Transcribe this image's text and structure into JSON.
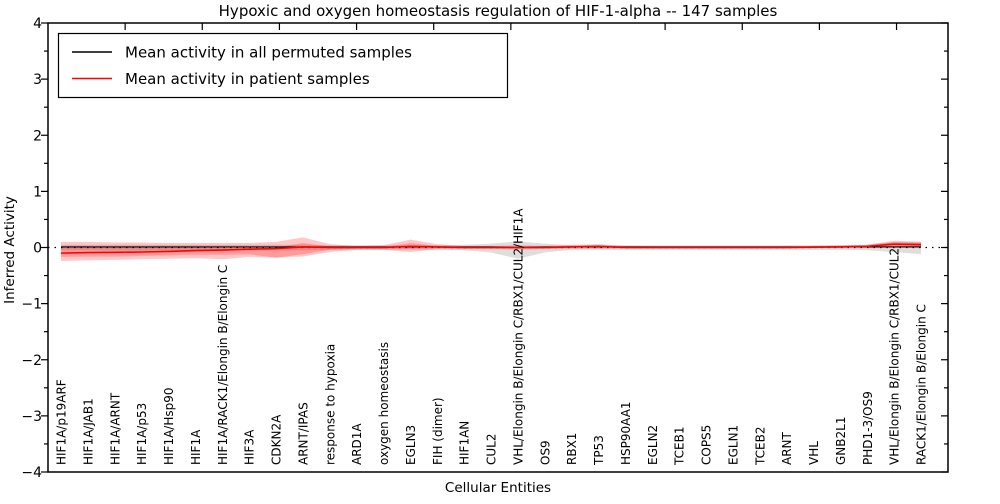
{
  "title": "Hypoxic and oxygen homeostasis regulation of HIF-1-alpha -- 147 samples",
  "axes": {
    "xlabel": "Cellular Entities",
    "ylabel": "Inferred Activity",
    "yticks": [
      4,
      3,
      2,
      1,
      0,
      -1,
      -2,
      -3,
      -4
    ],
    "ylim": [
      -4,
      4
    ]
  },
  "legend": {
    "items": [
      {
        "label": "Mean activity in all permuted samples",
        "color": "#000000"
      },
      {
        "label": "Mean activity in patient samples",
        "color": "#ff0000"
      }
    ]
  },
  "colors": {
    "frame": "#000000",
    "permuted_line": "#000000",
    "patient_line": "#ff0000",
    "permuted_band": "rgba(0,0,0,0.13)",
    "patient_band": "rgba(255,0,0,0.22)",
    "zero_line": "#000000"
  },
  "chart_data": {
    "type": "line",
    "title": "Hypoxic and oxygen homeostasis regulation of HIF-1-alpha -- 147 samples",
    "xlabel": "Cellular Entities",
    "ylabel": "Inferred Activity",
    "ylim": [
      -4,
      4
    ],
    "grid": false,
    "legend_position": "upper left",
    "categories": [
      "HIF1A/p19ARF",
      "HIF1A/JAB1",
      "HIF1A/ARNT",
      "HIF1A/p53",
      "HIF1A/Hsp90",
      "HIF1A",
      "HIF1A/RACK1/Elongin B/Elongin C",
      "HIF3A",
      "CDKN2A",
      "ARNT/IPAS",
      "response to hypoxia",
      "ARD1A",
      "oxygen homeostasis",
      "EGLN3",
      "FIH (dimer)",
      "HIF1AN",
      "CUL2",
      "VHL/Elongin B/Elongin C/RBX1/CUL2/HIF1A",
      "OS9",
      "RBX1",
      "TP53",
      "HSP90AA1",
      "EGLN2",
      "TCEB1",
      "COPS5",
      "EGLN1",
      "TCEB2",
      "ARNT",
      "VHL",
      "GNB2L1",
      "PHD1-3/OS9",
      "VHL/Elongin B/Elongin C/RBX1/CUL2",
      "RACK1/Elongin B/Elongin C"
    ],
    "series": [
      {
        "name": "Mean activity in all permuted samples",
        "color": "#000000",
        "values": [
          0.01,
          0.01,
          0.01,
          0.01,
          0.01,
          0.01,
          0.01,
          0.01,
          0.01,
          0.01,
          0.01,
          0.01,
          0.01,
          0.01,
          0.01,
          0.01,
          0.01,
          0.0,
          0.01,
          0.01,
          0.01,
          0.01,
          0.01,
          0.01,
          0.01,
          0.01,
          0.01,
          0.01,
          0.01,
          0.01,
          0.01,
          0.01,
          0.01
        ]
      },
      {
        "name": "Mean activity in patient samples",
        "color": "#ff0000",
        "values": [
          -0.1,
          -0.09,
          -0.085,
          -0.08,
          -0.07,
          -0.055,
          -0.045,
          -0.03,
          -0.02,
          0.01,
          0.0,
          0.0,
          0.0,
          0.02,
          0.01,
          0.0,
          0.0,
          0.0,
          0.0,
          0.01,
          0.02,
          0.0,
          0.0,
          0.0,
          0.0,
          0.0,
          0.0,
          0.0,
          0.005,
          0.01,
          0.02,
          0.06,
          0.05
        ]
      }
    ],
    "bands": [
      {
        "name": "permuted-std-band",
        "color": "rgba(0,0,0,0.13)",
        "upper": [
          0.05,
          0.05,
          0.05,
          0.05,
          0.05,
          0.05,
          0.05,
          0.05,
          0.05,
          0.05,
          0.04,
          0.04,
          0.04,
          0.04,
          0.04,
          0.05,
          0.07,
          0.11,
          0.07,
          0.04,
          0.04,
          0.04,
          0.04,
          0.04,
          0.04,
          0.04,
          0.04,
          0.04,
          0.04,
          0.04,
          0.05,
          0.1,
          0.1
        ],
        "lower": [
          -0.05,
          -0.05,
          -0.05,
          -0.05,
          -0.05,
          -0.05,
          -0.05,
          -0.05,
          -0.05,
          -0.05,
          -0.04,
          -0.04,
          -0.04,
          -0.04,
          -0.04,
          -0.05,
          -0.09,
          -0.2,
          -0.09,
          -0.04,
          -0.04,
          -0.04,
          -0.04,
          -0.04,
          -0.04,
          -0.04,
          -0.04,
          -0.04,
          -0.04,
          -0.04,
          -0.05,
          -0.08,
          -0.12
        ]
      },
      {
        "name": "patient-outer-band",
        "color": "rgba(255,0,0,0.22)",
        "upper": [
          0.1,
          0.1,
          0.09,
          0.09,
          0.08,
          0.08,
          0.08,
          0.08,
          0.1,
          0.18,
          0.06,
          0.03,
          0.04,
          0.14,
          0.06,
          0.03,
          0.03,
          0.04,
          0.03,
          0.05,
          0.06,
          0.03,
          0.02,
          0.02,
          0.02,
          0.02,
          0.02,
          0.02,
          0.03,
          0.04,
          0.05,
          0.12,
          0.1
        ],
        "lower": [
          -0.24,
          -0.23,
          -0.22,
          -0.21,
          -0.2,
          -0.19,
          -0.21,
          -0.17,
          -0.18,
          -0.16,
          -0.08,
          -0.04,
          -0.04,
          -0.08,
          -0.03,
          -0.03,
          -0.03,
          -0.04,
          -0.03,
          -0.02,
          -0.02,
          -0.02,
          -0.02,
          -0.02,
          -0.02,
          -0.02,
          -0.02,
          -0.02,
          -0.01,
          -0.01,
          0.0,
          0.0,
          0.0
        ]
      },
      {
        "name": "patient-inner-band",
        "color": "rgba(255,0,0,0.22)",
        "upper": [
          0.02,
          0.02,
          0.01,
          0.01,
          0.0,
          0.0,
          -0.01,
          -0.01,
          0.0,
          0.08,
          0.02,
          0.01,
          0.01,
          0.08,
          0.03,
          0.01,
          0.01,
          0.02,
          0.01,
          0.03,
          0.04,
          0.02,
          0.01,
          0.01,
          0.01,
          0.01,
          0.01,
          0.01,
          0.02,
          0.03,
          0.04,
          0.09,
          0.08
        ],
        "lower": [
          -0.17,
          -0.16,
          -0.16,
          -0.15,
          -0.14,
          -0.13,
          -0.13,
          -0.12,
          -0.18,
          -0.12,
          -0.04,
          -0.02,
          -0.02,
          -0.02,
          -0.01,
          -0.01,
          -0.01,
          -0.02,
          -0.01,
          0.0,
          0.0,
          -0.01,
          -0.01,
          -0.01,
          -0.01,
          -0.01,
          -0.01,
          -0.01,
          0.0,
          0.0,
          0.01,
          0.02,
          0.01
        ]
      }
    ],
    "zero_line": true
  }
}
